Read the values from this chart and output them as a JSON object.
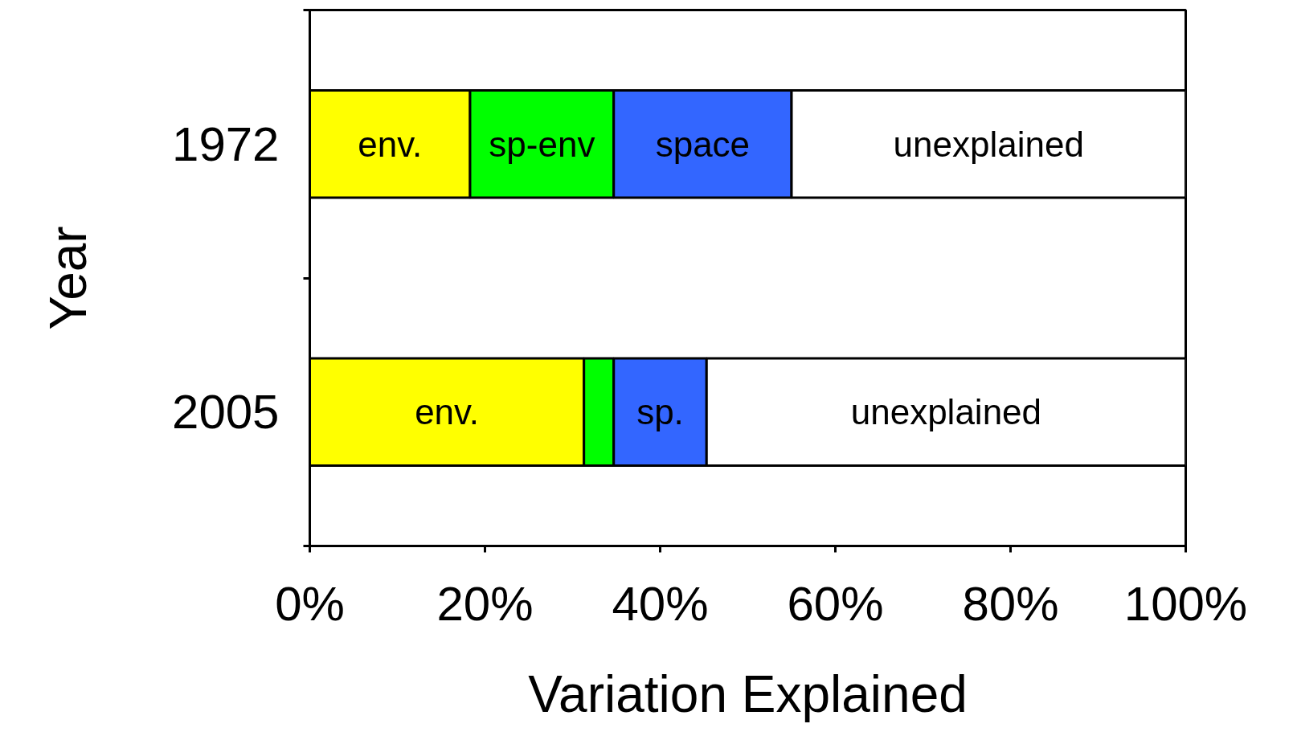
{
  "chart_data": {
    "type": "bar",
    "orientation": "horizontal",
    "stacked": true,
    "xlabel": "Variation Explained",
    "ylabel": "Year",
    "categories": [
      "1972",
      "2005"
    ],
    "series": [
      {
        "color": "#ffff00",
        "values": [
          18.3,
          31.3
        ],
        "value_labels": [
          "env.",
          "env."
        ]
      },
      {
        "color": "#00ff00",
        "values": [
          16.4,
          3.4
        ],
        "value_labels": [
          "sp-env",
          null
        ]
      },
      {
        "color": "#3366ff",
        "values": [
          20.3,
          10.6
        ],
        "value_labels": [
          "space",
          "sp."
        ]
      },
      {
        "color": "#ffffff",
        "values": [
          45.0,
          54.7
        ],
        "value_labels": [
          "unexplained",
          "unexplained"
        ]
      }
    ],
    "xlim": [
      0,
      100
    ],
    "xticks": [
      {
        "value": 0,
        "label": "0%"
      },
      {
        "value": 20,
        "label": "20%"
      },
      {
        "value": 40,
        "label": "40%"
      },
      {
        "value": 60,
        "label": "60%"
      },
      {
        "value": 80,
        "label": "80%"
      },
      {
        "value": 100,
        "label": "100%"
      }
    ],
    "grid": false
  }
}
